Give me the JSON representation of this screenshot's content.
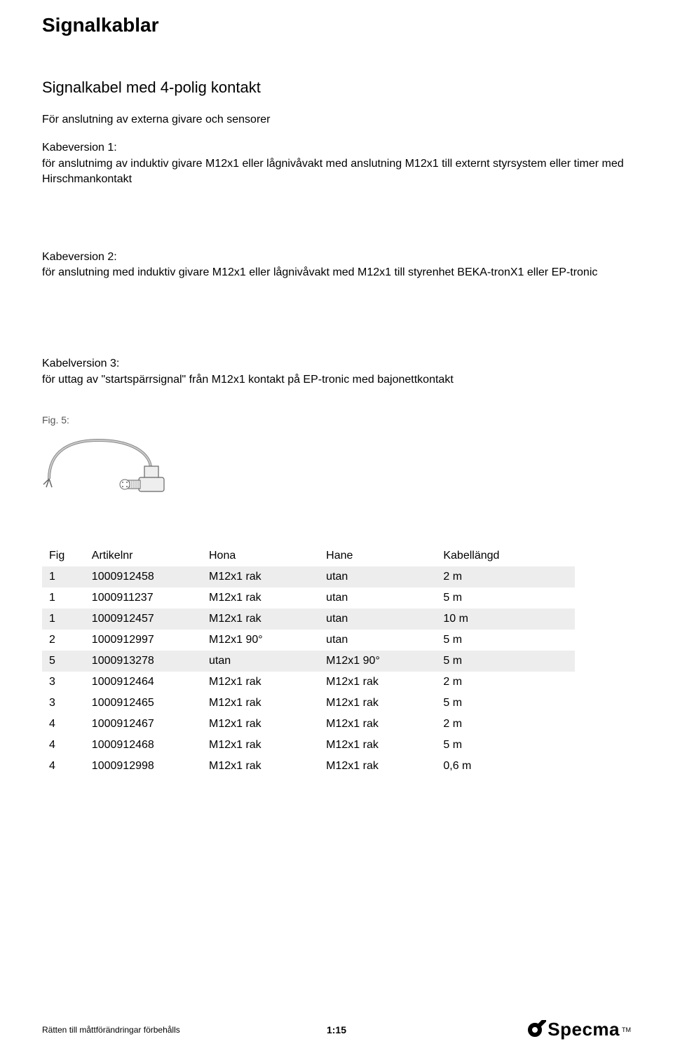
{
  "title": "Signalkablar",
  "subtitle": "Signalkabel med 4-polig kontakt",
  "intro": "För anslutning av externa givare och sensorer",
  "version1": {
    "heading": "Kabeversion 1:",
    "text": "för anslutnimg av induktiv givare M12x1 eller lågnivåvakt med anslutning M12x1 till externt styrsystem eller timer med Hirschmankontakt"
  },
  "version2": {
    "heading": "Kabeversion 2:",
    "text": "för anslutning med induktiv givare M12x1 eller lågnivåvakt med M12x1 till styrenhet BEKA-tronX1 eller EP-tronic"
  },
  "version3": {
    "heading": "Kabelversion 3:",
    "text": "för uttag av \"startspärrsignal\" från M12x1 kontakt på EP-tronic med bajonettkontakt"
  },
  "fig_label": "Fig. 5:",
  "table": {
    "columns": [
      "Fig",
      "Artikelnr",
      "Hona",
      "Hane",
      "Kabellängd"
    ],
    "rows": [
      {
        "fig": "1",
        "art": "1000912458",
        "hona": "M12x1 rak",
        "hane": "utan",
        "len": "2 m",
        "shade": true
      },
      {
        "fig": "1",
        "art": "1000911237",
        "hona": "M12x1 rak",
        "hane": "utan",
        "len": "5 m",
        "shade": false
      },
      {
        "fig": "1",
        "art": "1000912457",
        "hona": "M12x1 rak",
        "hane": "utan",
        "len": "10 m",
        "shade": true
      },
      {
        "fig": "2",
        "art": "1000912997",
        "hona": "M12x1 90°",
        "hane": "utan",
        "len": "5 m",
        "shade": false
      },
      {
        "fig": "5",
        "art": "1000913278",
        "hona": "utan",
        "hane": "M12x1 90°",
        "len": "5 m",
        "shade": true
      },
      {
        "fig": "3",
        "art": "1000912464",
        "hona": "M12x1 rak",
        "hane": "M12x1 rak",
        "len": "2 m",
        "shade": false
      },
      {
        "fig": "3",
        "art": "1000912465",
        "hona": "M12x1 rak",
        "hane": "M12x1 rak",
        "len": "5 m",
        "shade": false
      },
      {
        "fig": "4",
        "art": "1000912467",
        "hona": "M12x1 rak",
        "hane": "M12x1 rak",
        "len": "2 m",
        "shade": false
      },
      {
        "fig": "4",
        "art": "1000912468",
        "hona": "M12x1 rak",
        "hane": "M12x1 rak",
        "len": "5 m",
        "shade": false
      },
      {
        "fig": "4",
        "art": "1000912998",
        "hona": "M12x1 rak",
        "hane": "M12x1 rak",
        "len": "0,6 m",
        "shade": false
      }
    ],
    "shade_color": "#ededed"
  },
  "footer": {
    "left": "Rätten till måttförändringar förbehålls",
    "center": "1:15",
    "logo_text": "Specma"
  },
  "colors": {
    "text": "#000000",
    "bg": "#ffffff"
  }
}
